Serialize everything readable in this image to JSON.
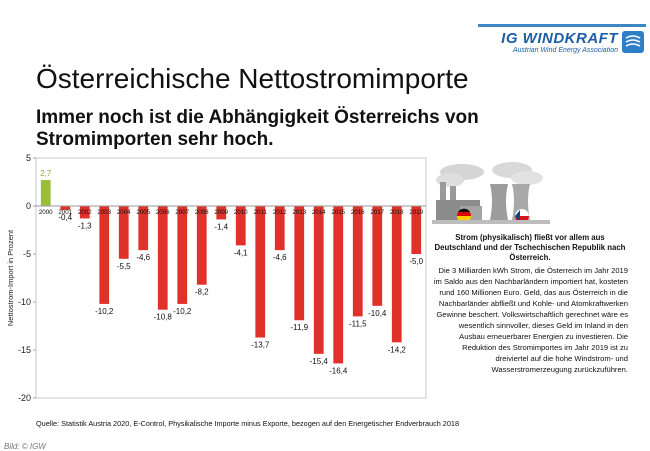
{
  "header": {
    "brand": "IG WINDKRAFT",
    "brand_sub": "Austrian Wind Energy Association"
  },
  "title": "Österreichische Nettostromimporte",
  "subtitle": "Immer noch ist die Abhängigkeit Österreichs von Stromimporten sehr hoch.",
  "chart_data": {
    "type": "bar",
    "categories": [
      "2000",
      "2001",
      "2002",
      "2003",
      "2004",
      "2005",
      "2006",
      "2007",
      "2008",
      "2009",
      "2010",
      "2011",
      "2012",
      "2013",
      "2014",
      "2015",
      "2016",
      "2017",
      "2018",
      "2019"
    ],
    "values": [
      2.7,
      -0.4,
      -1.3,
      -10.2,
      -5.5,
      -4.6,
      -10.8,
      -10.2,
      -8.2,
      -1.4,
      -4.1,
      -13.7,
      -4.6,
      -11.9,
      -15.4,
      -16.4,
      -11.5,
      -10.4,
      -14.2,
      -5.0
    ],
    "value_labels": [
      "2,7",
      "-0,4",
      "-1,3",
      "-10,2",
      "-5,5",
      "-4,6",
      "-10,8",
      "-10,2",
      "-8,2",
      "-1,4",
      "-4,1",
      "-13,7",
      "-4,6",
      "-11,9",
      "-15,4",
      "-16,4",
      "-11,5",
      "-10,4",
      "-14,2",
      "-5,0"
    ],
    "ylabel": "Nettostrom-Import in Prozent",
    "ylim": [
      -20,
      5
    ],
    "yticks": [
      5,
      0,
      -5,
      -10,
      -15,
      -20
    ],
    "ytick_labels": [
      "5",
      "0",
      "-5",
      "-10",
      "-15",
      "-20"
    ],
    "colors": {
      "positive": "#9bbb3a",
      "negative": "#e0312a",
      "positive_label": "#8aab2a",
      "negative_label": "#111111"
    },
    "grid": false
  },
  "note": {
    "heading": "Strom (physikalisch) fließt vor allem aus Deutschland und der Tschechischen Republik nach Österreich.",
    "body": "Die 3 Milliarden kWh Strom, die Österreich im Jahr 2019 im Saldo aus den Nachbarländern importiert hat, kosteten rund 160 Millionen Euro. Geld, das aus Österreich in die Nachbarländer abfließt und Kohle- und Atomkraftwerken Gewinne beschert. Volkswirtschaftlich gerechnet wäre es wesentlich sinnvoller, dieses Geld im Inland in den Ausbau erneuerbarer Energien zu investieren. Die Reduktion des Stromimportes im Jahr 2019 ist zu dreiviertel auf die hohe Windstrom- und Wasserstromerzeugung zurückzuführen."
  },
  "source": "Quelle: Statistik Austria 2020, E-Control, Physikalische Importe minus Exporte, bezogen auf den Energetischer Endverbrauch 2018",
  "credit": "Bild: © IGW"
}
